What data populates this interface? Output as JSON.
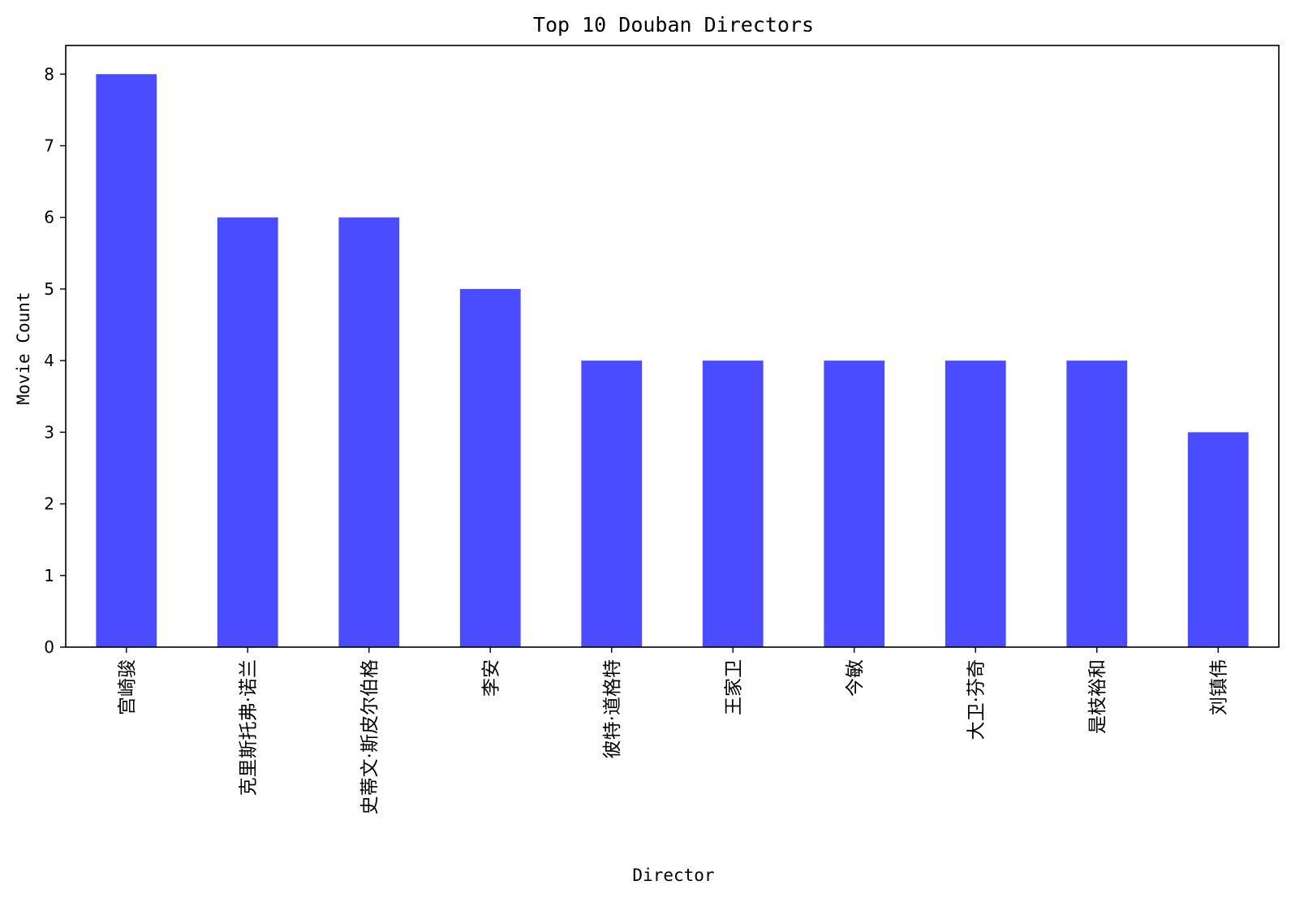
{
  "chart_data": {
    "type": "bar",
    "title": "Top 10 Douban Directors",
    "xlabel": "Director",
    "ylabel": "Movie Count",
    "categories": [
      "宫崎骏",
      "克里斯托弗·诺兰",
      "史蒂文·斯皮尔伯格",
      "李安",
      "彼特·道格特",
      "王家卫",
      "今敏",
      "大卫·芬奇",
      "是枝裕和",
      "刘镇伟"
    ],
    "values": [
      8,
      6,
      6,
      5,
      4,
      4,
      4,
      4,
      4,
      3
    ],
    "ylim": [
      0,
      8.4
    ],
    "yticks": [
      "0",
      "1",
      "2",
      "3",
      "4",
      "5",
      "6",
      "7",
      "8"
    ],
    "bar_color": "#4b4bff",
    "grid": false,
    "legend": "none"
  }
}
